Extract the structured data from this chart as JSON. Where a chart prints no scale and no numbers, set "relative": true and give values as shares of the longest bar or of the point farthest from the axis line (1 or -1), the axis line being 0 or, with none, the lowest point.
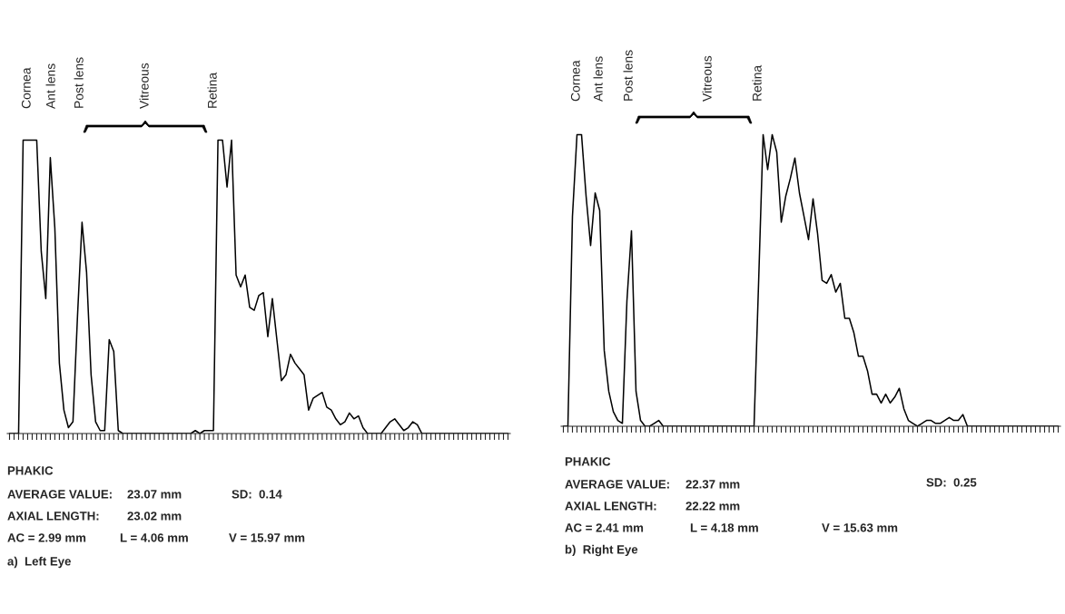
{
  "chart_data": [
    {
      "type": "line",
      "relative": true,
      "color": "#000000",
      "categories": [
        null,
        null,
        null,
        null,
        null,
        null,
        null,
        null,
        null,
        null,
        null,
        null,
        null,
        null,
        null,
        null,
        null,
        null,
        null,
        null,
        null,
        null,
        null,
        null,
        null,
        null,
        null,
        null,
        null,
        null,
        null,
        null,
        null,
        null,
        null,
        null,
        null,
        null,
        null,
        null,
        null,
        null,
        null,
        null,
        null,
        null,
        null,
        null,
        null,
        null,
        null,
        null,
        null,
        null,
        null,
        null,
        null,
        null,
        null,
        null,
        null,
        null,
        null,
        null,
        null,
        null,
        null,
        null,
        null,
        null,
        null,
        null,
        null,
        null,
        null,
        null,
        null,
        null,
        null,
        null,
        null,
        null,
        null,
        null,
        null,
        null,
        null,
        null,
        null,
        null,
        null,
        null,
        null,
        null,
        null,
        null,
        null,
        null,
        null,
        null,
        null,
        null,
        null,
        null,
        null,
        null,
        null,
        null,
        null,
        null,
        null
      ],
      "values": [
        0,
        0,
        0,
        1,
        1,
        1,
        1,
        0.62,
        0.46,
        0.94,
        0.7,
        0.24,
        0.08,
        0.02,
        0.04,
        0.4,
        0.72,
        0.55,
        0.2,
        0.04,
        0.01,
        0.01,
        0.32,
        0.28,
        0.01,
        0,
        0,
        0,
        0,
        0,
        0,
        0,
        0,
        0,
        0,
        0,
        0,
        0,
        0,
        0,
        0,
        0.01,
        0,
        0.01,
        0.01,
        0.01,
        1,
        1,
        0.84,
        1,
        0.54,
        0.5,
        0.54,
        0.43,
        0.42,
        0.47,
        0.48,
        0.33,
        0.46,
        0.32,
        0.18,
        0.2,
        0.27,
        0.24,
        0.22,
        0.2,
        0.08,
        0.12,
        0.13,
        0.14,
        0.09,
        0.08,
        0.05,
        0.03,
        0.04,
        0.07,
        0.05,
        0.06,
        0.02,
        0,
        0,
        0,
        0,
        0.02,
        0.04,
        0.05,
        0.03,
        0.01,
        0.02,
        0.04,
        0.03,
        0,
        0,
        0,
        0,
        0,
        0,
        0,
        0,
        0,
        0,
        0,
        0,
        0,
        0,
        0,
        0,
        0,
        0,
        0,
        0
      ],
      "annotations": [
        "Cornea",
        "Ant lens",
        "Post lens",
        "Vitreous",
        "Retina",
        "PHAKIC",
        "AVERAGE VALUE:",
        "23.07 mm",
        "SD:  0.14",
        "AXIAL LENGTH:",
        "23.02 mm",
        "AC = 2.99 mm",
        "L = 4.06 mm",
        "V = 15.97 mm",
        "a)  Left Eye"
      ]
    },
    {
      "type": "line",
      "relative": true,
      "color": "#000000",
      "categories": [
        null,
        null,
        null,
        null,
        null,
        null,
        null,
        null,
        null,
        null,
        null,
        null,
        null,
        null,
        null,
        null,
        null,
        null,
        null,
        null,
        null,
        null,
        null,
        null,
        null,
        null,
        null,
        null,
        null,
        null,
        null,
        null,
        null,
        null,
        null,
        null,
        null,
        null,
        null,
        null,
        null,
        null,
        null,
        null,
        null,
        null,
        null,
        null,
        null,
        null,
        null,
        null,
        null,
        null,
        null,
        null,
        null,
        null,
        null,
        null,
        null,
        null,
        null,
        null,
        null,
        null,
        null,
        null,
        null,
        null,
        null,
        null,
        null,
        null,
        null,
        null,
        null,
        null,
        null,
        null,
        null,
        null,
        null,
        null,
        null,
        null,
        null,
        null,
        null,
        null,
        null,
        null,
        null,
        null,
        null,
        null,
        null,
        null,
        null,
        null,
        null,
        null,
        null,
        null,
        null,
        null,
        null,
        null,
        null,
        null
      ],
      "values": [
        0,
        0,
        0.72,
        1,
        1,
        0.79,
        0.62,
        0.8,
        0.74,
        0.26,
        0.12,
        0.05,
        0.02,
        0.01,
        0.43,
        0.67,
        0.12,
        0.02,
        0,
        0,
        0.01,
        0.02,
        0,
        0,
        0,
        0,
        0,
        0,
        0,
        0,
        0,
        0,
        0,
        0,
        0,
        0,
        0,
        0,
        0,
        0,
        0,
        0,
        0,
        0.49,
        1,
        0.88,
        1,
        0.94,
        0.7,
        0.79,
        0.85,
        0.92,
        0.8,
        0.72,
        0.64,
        0.78,
        0.66,
        0.5,
        0.49,
        0.52,
        0.46,
        0.49,
        0.37,
        0.37,
        0.32,
        0.24,
        0.24,
        0.19,
        0.11,
        0.11,
        0.08,
        0.11,
        0.08,
        0.1,
        0.13,
        0.06,
        0.02,
        0.01,
        0,
        0.01,
        0.02,
        0.02,
        0.01,
        0.01,
        0.02,
        0.03,
        0.02,
        0.02,
        0.04,
        0,
        0,
        0,
        0,
        0,
        0,
        0,
        0,
        0,
        0,
        0,
        0,
        0,
        0,
        0,
        0,
        0,
        0,
        0,
        0,
        0
      ],
      "annotations": [
        "Cornea",
        "Ant lens",
        "Post lens",
        "Vitreous",
        "Retina",
        "PHAKIC",
        "AVERAGE VALUE:",
        "22.37 mm",
        "SD:  0.25",
        "AXIAL LENGTH:",
        "22.22 mm",
        "AC = 2.41 mm",
        "L = 4.18 mm",
        "V = 15.63 mm",
        "b)  Right Eye"
      ]
    }
  ]
}
